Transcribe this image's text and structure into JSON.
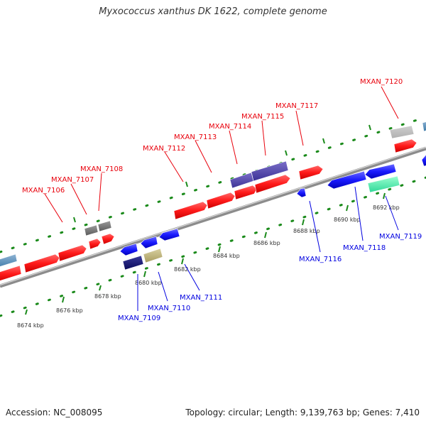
{
  "title": "Myxococcus xanthus DK 1622, complete genome",
  "footer": {
    "accession": "Accession: NC_008095",
    "summary": "Topology: circular; Length: 9,139,763 bp; Genes: 7,410"
  },
  "colors": {
    "forward_gene": "#ff1a1a",
    "reverse_gene": "#1a1aff",
    "forward_label": "#e8000b",
    "reverse_label": "#0000e0",
    "backbone": "#8c8c8c",
    "tick_green": "#1a8a1a"
  },
  "scale_labels": [
    "8674 kbp",
    "8676 kbp",
    "8678 kbp",
    "8680 kbp",
    "8682 kbp",
    "8684 kbp",
    "8686 kbp",
    "8688 kbp",
    "8690 kbp",
    "8692 kbp"
  ],
  "forward_gene_labels": [
    "MXAN_7106",
    "MXAN_7107",
    "MXAN_7108",
    "MXAN_7112",
    "MXAN_7113",
    "MXAN_7114",
    "MXAN_7115",
    "MXAN_7117",
    "MXAN_7120"
  ],
  "reverse_gene_labels": [
    "MXAN_7109",
    "MXAN_7110",
    "MXAN_7111",
    "MXAN_7116",
    "MXAN_7118",
    "MXAN_7119"
  ]
}
